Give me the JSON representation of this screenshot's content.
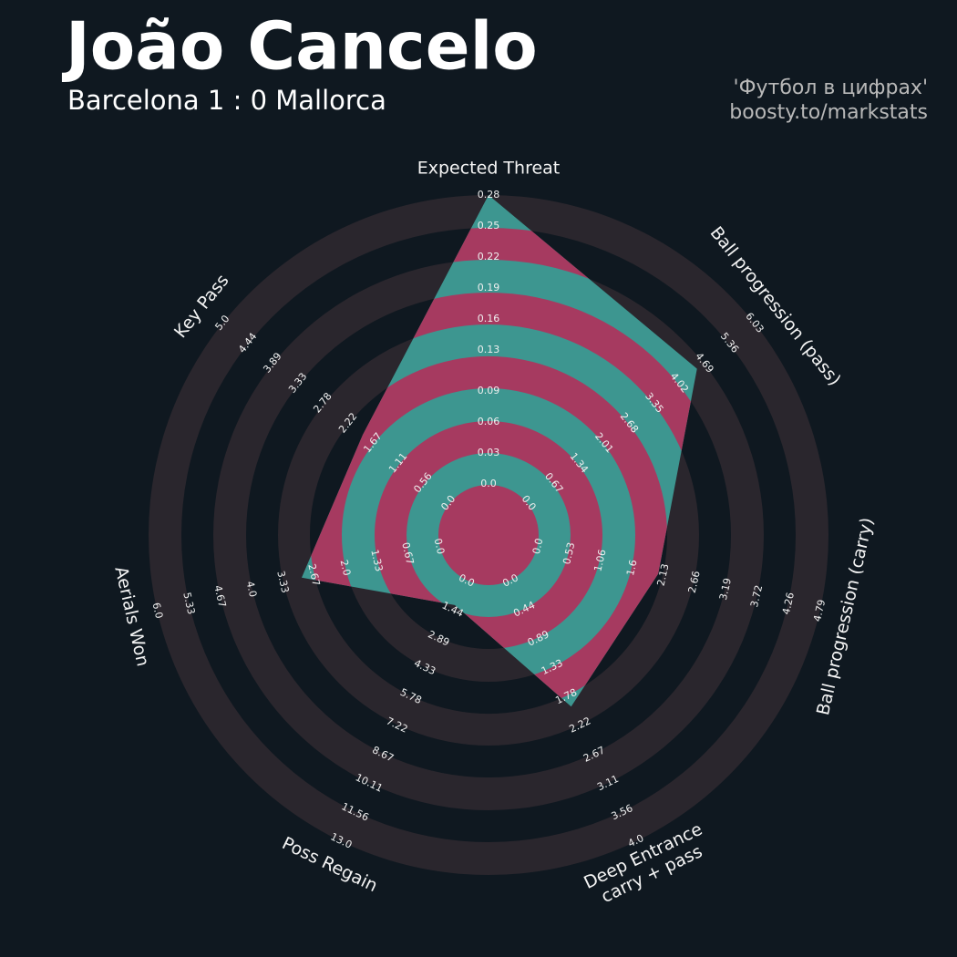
{
  "chart_data": {
    "type": "radar",
    "title": "João Cancelo",
    "subtitle": "Barcelona 1 : 0 Mallorca",
    "credits": [
      "'Футбол в цифрах'",
      "boosty.to/markstats"
    ],
    "ring_color": "#2a262d",
    "fill_color": "#3d9690",
    "band_color": "#a63a60",
    "axes": [
      {
        "label": "Expected Threat",
        "lim": [
          0,
          0.28
        ],
        "ticks": [
          {
            "value": 0,
            "label": "0.0"
          },
          0.03,
          0.06,
          0.09,
          0.13,
          0.16,
          0.19,
          0.22,
          0.25,
          0.28
        ]
      },
      {
        "label": "Ball progression (pass)",
        "lim": [
          0,
          6.03
        ],
        "ticks": [
          {
            "value": 0,
            "label": "0.0"
          },
          0.67,
          1.34,
          2.01,
          2.68,
          3.35,
          4.02,
          4.69,
          5.36,
          6.03
        ]
      },
      {
        "label": "Ball progression (carry)",
        "lim": [
          0,
          4.79
        ],
        "ticks": [
          {
            "value": 0,
            "label": "0.0"
          },
          0.53,
          1.06,
          1.6,
          2.13,
          2.66,
          3.19,
          3.72,
          4.26,
          4.79
        ]
      },
      {
        "label": "Deep Entrance\ncarry + pass",
        "lim": [
          0,
          4
        ],
        "ticks": [
          {
            "value": 0,
            "label": "0.0"
          },
          0.44,
          0.89,
          1.33,
          1.78,
          2.22,
          2.67,
          3.11,
          3.56,
          {
            "value": 4,
            "label": "4.0"
          }
        ]
      },
      {
        "label": "Poss Regain",
        "lim": [
          0,
          13
        ],
        "ticks": [
          {
            "value": 0,
            "label": "0.0"
          },
          1.44,
          2.89,
          4.33,
          5.78,
          7.22,
          8.67,
          10.11,
          11.56,
          {
            "value": 13,
            "label": "13.0"
          }
        ]
      },
      {
        "label": "Aerials Won",
        "lim": [
          0,
          6
        ],
        "ticks": [
          {
            "value": 0,
            "label": "0.0"
          },
          0.67,
          1.33,
          {
            "value": 2,
            "label": "2.0"
          },
          2.67,
          3.33,
          {
            "value": 4,
            "label": "4.0"
          },
          4.67,
          5.33,
          {
            "value": 6,
            "label": "6.0"
          }
        ]
      },
      {
        "label": "Key Pass",
        "lim": [
          0,
          5
        ],
        "ticks": [
          {
            "value": 0,
            "label": "0.0"
          },
          0.56,
          1.11,
          1.67,
          2.22,
          2.78,
          3.33,
          3.89,
          4.44,
          {
            "value": 5,
            "label": "5.0"
          }
        ]
      }
    ],
    "values": [
      0.28,
      4.5,
      2.04,
      1.93,
      1.2,
      2.92,
      1.9
    ]
  }
}
